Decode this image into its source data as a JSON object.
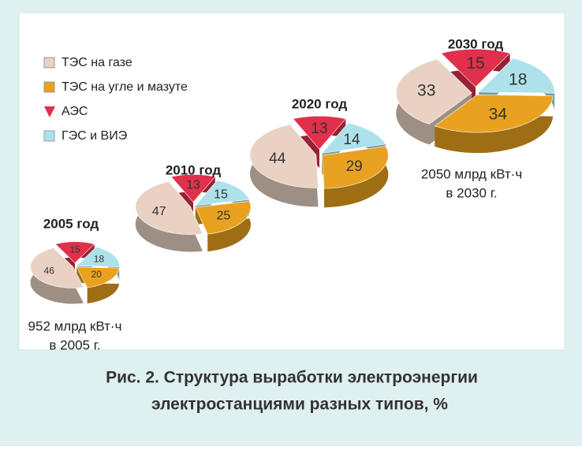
{
  "legend": {
    "items": [
      {
        "name": "ТЭС на газе",
        "color": "#e9d2c4"
      },
      {
        "name": "ТЭС на угле и мазуте",
        "color": "#e9a21f"
      },
      {
        "name": "АЭС",
        "color": "#e0304c"
      },
      {
        "name": "ГЭС и ВИЭ",
        "color": "#ade2ea"
      }
    ]
  },
  "chart_data": [
    {
      "type": "pie",
      "title": "2005 год",
      "values": [
        46,
        20,
        15,
        18
      ],
      "annotation": [
        "952 млрд кВт·ч",
        "в 2005 г."
      ]
    },
    {
      "type": "pie",
      "title": "2010 год",
      "values": [
        47,
        25,
        13,
        15
      ]
    },
    {
      "type": "pie",
      "title": "2020 год",
      "values": [
        44,
        29,
        13,
        14
      ]
    },
    {
      "type": "pie",
      "title": "2030 год",
      "values": [
        33,
        34,
        15,
        18
      ],
      "annotation": [
        "2050 млрд кВт·ч",
        "в 2030 г."
      ]
    }
  ],
  "caption": [
    "Рис. 2. Структура выработки электроэнергии",
    "электростанциями разных типов, %"
  ]
}
